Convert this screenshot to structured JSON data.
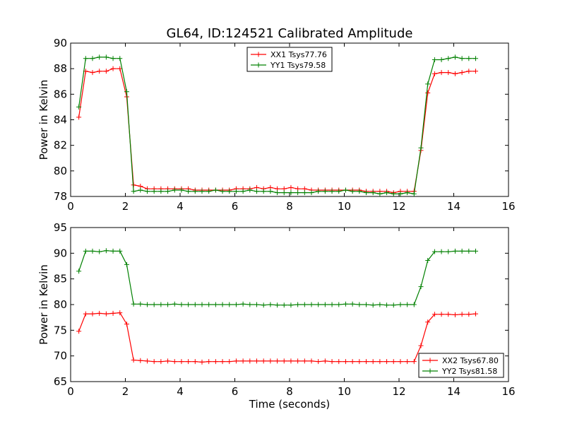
{
  "chart_data": [
    {
      "type": "line",
      "title": "GL64, ID:124521 Calibrated Amplitude",
      "xlabel": "",
      "ylabel": "Power in Kelvin",
      "xlim": [
        0,
        16
      ],
      "ylim": [
        78,
        90
      ],
      "xticks": [
        "0",
        "2",
        "4",
        "6",
        "8",
        "10",
        "12",
        "14",
        "16"
      ],
      "yticks": [
        "78",
        "80",
        "82",
        "84",
        "86",
        "88",
        "90"
      ],
      "legend_position": "top-center",
      "x": [
        0.3,
        0.55,
        0.8,
        1.05,
        1.3,
        1.55,
        1.8,
        2.05,
        2.3,
        2.55,
        2.8,
        3.05,
        3.3,
        3.55,
        3.8,
        4.05,
        4.3,
        4.55,
        4.8,
        5.05,
        5.3,
        5.55,
        5.8,
        6.05,
        6.3,
        6.55,
        6.8,
        7.05,
        7.3,
        7.55,
        7.8,
        8.05,
        8.3,
        8.55,
        8.8,
        9.05,
        9.3,
        9.55,
        9.8,
        10.05,
        10.3,
        10.55,
        10.8,
        11.05,
        11.3,
        11.55,
        11.8,
        12.05,
        12.3,
        12.55,
        12.8,
        13.05,
        13.3,
        13.55,
        13.8,
        14.05,
        14.3,
        14.55,
        14.8
      ],
      "series": [
        {
          "name": "XX1 Tsys77.76",
          "color": "#ff0000",
          "values": [
            84.2,
            87.8,
            87.7,
            87.8,
            87.8,
            88.0,
            88.0,
            85.8,
            78.9,
            78.8,
            78.6,
            78.6,
            78.6,
            78.6,
            78.6,
            78.6,
            78.6,
            78.5,
            78.5,
            78.5,
            78.5,
            78.5,
            78.5,
            78.6,
            78.6,
            78.6,
            78.7,
            78.6,
            78.7,
            78.6,
            78.6,
            78.7,
            78.6,
            78.6,
            78.5,
            78.5,
            78.5,
            78.5,
            78.5,
            78.5,
            78.5,
            78.5,
            78.4,
            78.4,
            78.4,
            78.4,
            78.3,
            78.4,
            78.4,
            78.4,
            81.6,
            86.1,
            87.6,
            87.7,
            87.7,
            87.6,
            87.7,
            87.8,
            87.8
          ]
        },
        {
          "name": "YY1 Tsys79.58",
          "color": "#008000",
          "values": [
            85.0,
            88.8,
            88.8,
            88.9,
            88.9,
            88.8,
            88.8,
            86.2,
            78.4,
            78.5,
            78.4,
            78.4,
            78.4,
            78.4,
            78.5,
            78.5,
            78.4,
            78.4,
            78.4,
            78.4,
            78.5,
            78.4,
            78.4,
            78.4,
            78.4,
            78.5,
            78.4,
            78.4,
            78.4,
            78.3,
            78.3,
            78.3,
            78.3,
            78.3,
            78.3,
            78.4,
            78.4,
            78.4,
            78.4,
            78.5,
            78.4,
            78.4,
            78.3,
            78.3,
            78.2,
            78.3,
            78.2,
            78.2,
            78.3,
            78.2,
            81.8,
            86.8,
            88.7,
            88.7,
            88.8,
            88.9,
            88.8,
            88.8,
            88.8
          ]
        }
      ]
    },
    {
      "type": "line",
      "title": "",
      "xlabel": "Time (seconds)",
      "ylabel": "Power in Kelvin",
      "xlim": [
        0,
        16
      ],
      "ylim": [
        65,
        95
      ],
      "xticks": [
        "0",
        "2",
        "4",
        "6",
        "8",
        "10",
        "12",
        "14",
        "16"
      ],
      "yticks": [
        "65",
        "70",
        "75",
        "80",
        "85",
        "90",
        "95"
      ],
      "legend_position": "bottom-right",
      "x": [
        0.3,
        0.55,
        0.8,
        1.05,
        1.3,
        1.55,
        1.8,
        2.05,
        2.3,
        2.55,
        2.8,
        3.05,
        3.3,
        3.55,
        3.8,
        4.05,
        4.3,
        4.55,
        4.8,
        5.05,
        5.3,
        5.55,
        5.8,
        6.05,
        6.3,
        6.55,
        6.8,
        7.05,
        7.3,
        7.55,
        7.8,
        8.05,
        8.3,
        8.55,
        8.8,
        9.05,
        9.3,
        9.55,
        9.8,
        10.05,
        10.3,
        10.55,
        10.8,
        11.05,
        11.3,
        11.55,
        11.8,
        12.05,
        12.3,
        12.55,
        12.8,
        13.05,
        13.3,
        13.55,
        13.8,
        14.05,
        14.3,
        14.55,
        14.8
      ],
      "series": [
        {
          "name": "XX2 Tsys67.80",
          "color": "#ff0000",
          "values": [
            74.8,
            78.2,
            78.2,
            78.3,
            78.2,
            78.3,
            78.4,
            76.2,
            69.2,
            69.1,
            69.0,
            68.9,
            68.9,
            69.0,
            68.9,
            68.9,
            68.9,
            68.9,
            68.8,
            68.9,
            68.9,
            68.9,
            68.9,
            69.0,
            69.0,
            69.0,
            69.0,
            69.0,
            69.0,
            69.0,
            69.0,
            69.0,
            69.0,
            69.0,
            69.0,
            68.9,
            69.0,
            68.9,
            68.9,
            68.9,
            68.9,
            68.9,
            68.9,
            68.9,
            68.9,
            68.9,
            68.9,
            68.9,
            68.9,
            68.9,
            72.0,
            76.6,
            78.1,
            78.1,
            78.1,
            78.0,
            78.1,
            78.1,
            78.2
          ]
        },
        {
          "name": "YY2 Tsys81.58",
          "color": "#008000",
          "values": [
            86.5,
            90.4,
            90.4,
            90.3,
            90.5,
            90.4,
            90.4,
            87.8,
            80.1,
            80.1,
            80.0,
            80.0,
            80.0,
            80.0,
            80.1,
            80.0,
            80.0,
            80.0,
            80.0,
            80.0,
            80.0,
            80.0,
            80.0,
            80.0,
            80.1,
            80.0,
            80.0,
            79.9,
            80.0,
            79.9,
            79.9,
            79.9,
            80.0,
            80.0,
            80.0,
            80.0,
            80.0,
            80.0,
            80.0,
            80.1,
            80.1,
            80.0,
            80.0,
            79.9,
            80.0,
            79.9,
            79.9,
            80.0,
            80.0,
            80.0,
            83.5,
            88.6,
            90.3,
            90.3,
            90.3,
            90.4,
            90.4,
            90.4,
            90.4
          ]
        }
      ]
    }
  ]
}
